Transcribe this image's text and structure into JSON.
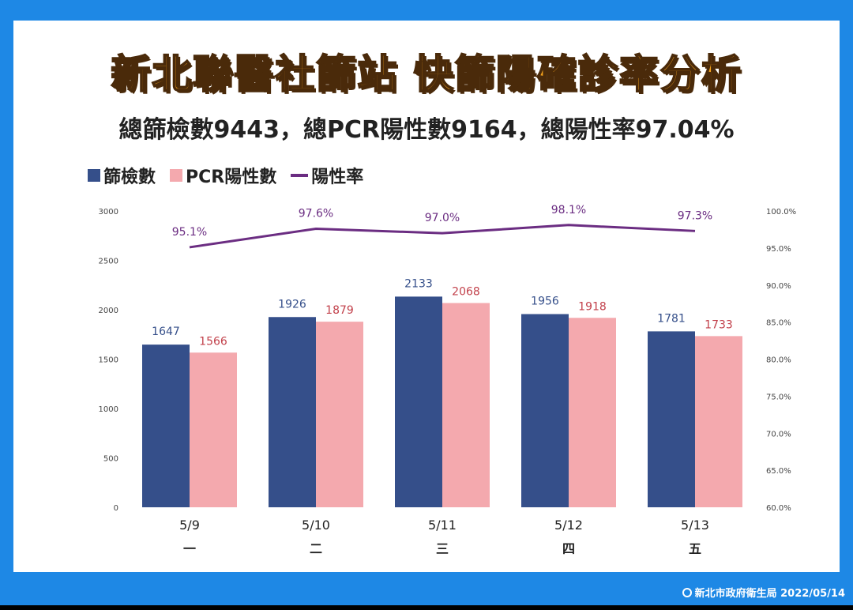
{
  "title": "新北聯醫社篩站 快篩陽確診率分析",
  "subtitle": "總篩檢數9443，總PCR陽性數9164，總陽性率97.04%",
  "footer": "新北市政府衛生局 2022/05/14",
  "colors": {
    "screen": "#354f8a",
    "pcr": "#f4a9ae",
    "rate": "#6b2d82",
    "screen_label": "#354f8a",
    "pcr_label": "#c2414b"
  },
  "chart_data": {
    "type": "bar",
    "categories": [
      "5/9",
      "5/10",
      "5/11",
      "5/12",
      "5/13"
    ],
    "weekdays": [
      "一",
      "二",
      "三",
      "四",
      "五"
    ],
    "series": [
      {
        "name": "篩檢數",
        "type": "bar",
        "values": [
          1647,
          1926,
          2133,
          1956,
          1781
        ]
      },
      {
        "name": "PCR陽性數",
        "type": "bar",
        "values": [
          1566,
          1879,
          2068,
          1918,
          1733
        ]
      },
      {
        "name": "陽性率",
        "type": "line",
        "axis": "right",
        "values": [
          95.1,
          97.6,
          97.0,
          98.1,
          97.3
        ],
        "labels": [
          "95.1%",
          "97.6%",
          "97.0%",
          "98.1%",
          "97.3%"
        ]
      }
    ],
    "ylim": [
      0,
      3000
    ],
    "yticks": [
      "0",
      "500",
      "1000",
      "1500",
      "2000",
      "2500",
      "3000"
    ],
    "y2lim": [
      60,
      100
    ],
    "y2ticks": [
      "60.0%",
      "65.0%",
      "70.0%",
      "75.0%",
      "80.0%",
      "85.0%",
      "90.0%",
      "95.0%",
      "100.0%"
    ],
    "legend_position": "top-left",
    "grid": false
  }
}
